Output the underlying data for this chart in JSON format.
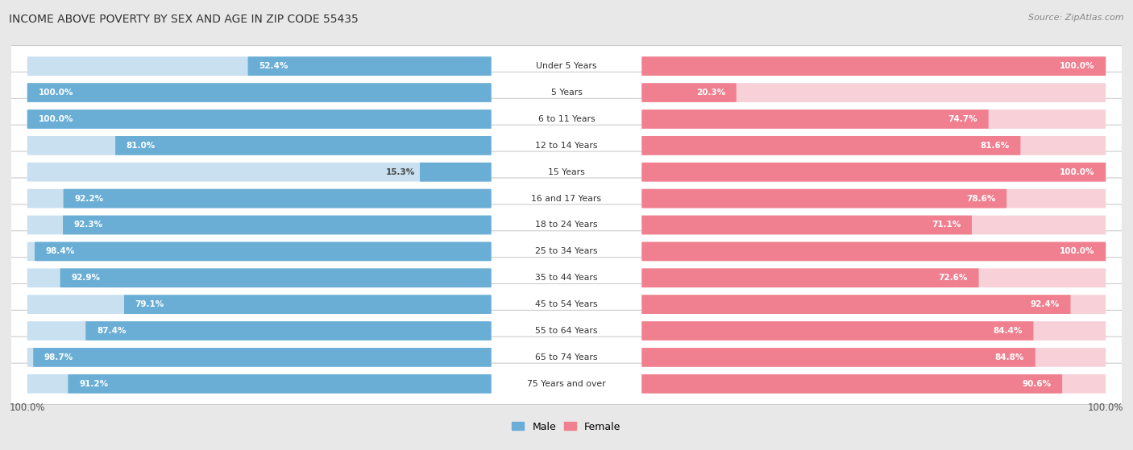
{
  "title": "INCOME ABOVE POVERTY BY SEX AND AGE IN ZIP CODE 55435",
  "source": "Source: ZipAtlas.com",
  "categories": [
    "Under 5 Years",
    "5 Years",
    "6 to 11 Years",
    "12 to 14 Years",
    "15 Years",
    "16 and 17 Years",
    "18 to 24 Years",
    "25 to 34 Years",
    "35 to 44 Years",
    "45 to 54 Years",
    "55 to 64 Years",
    "65 to 74 Years",
    "75 Years and over"
  ],
  "male": [
    52.4,
    100.0,
    100.0,
    81.0,
    15.3,
    92.2,
    92.3,
    98.4,
    92.9,
    79.1,
    87.4,
    98.7,
    91.2
  ],
  "female": [
    100.0,
    20.3,
    74.7,
    81.6,
    100.0,
    78.6,
    71.1,
    100.0,
    72.6,
    92.4,
    84.4,
    84.8,
    90.6
  ],
  "male_color": "#6aaed6",
  "male_color_light": "#c8e0f0",
  "female_color": "#f08090",
  "female_color_light": "#f8d0d8",
  "bg_color": "#e8e8e8",
  "row_bg_color": "#ffffff",
  "legend_male": "Male",
  "legend_female": "Female",
  "x_left_label": "100.0%",
  "x_right_label": "100.0%"
}
